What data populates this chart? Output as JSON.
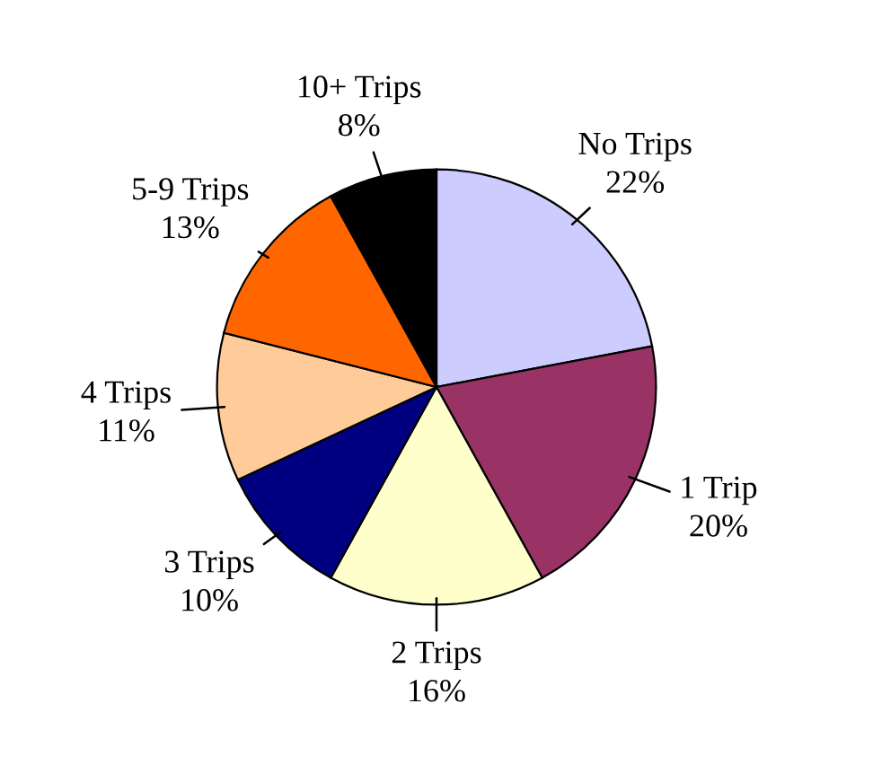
{
  "chart_data": {
    "type": "pie",
    "categories": [
      "No Trips",
      "1 Trip",
      "2 Trips",
      "3 Trips",
      "4 Trips",
      "5-9 Trips",
      "10+ Trips"
    ],
    "values": [
      22,
      20,
      16,
      10,
      11,
      13,
      8
    ],
    "colors": [
      "#ccccff",
      "#993366",
      "#ffffcc",
      "#000080",
      "#ffcc99",
      "#ff6600",
      "#000000"
    ],
    "value_labels": [
      "22%",
      "20%",
      "16%",
      "10%",
      "11%",
      "13%",
      "8%"
    ],
    "legend": false
  }
}
